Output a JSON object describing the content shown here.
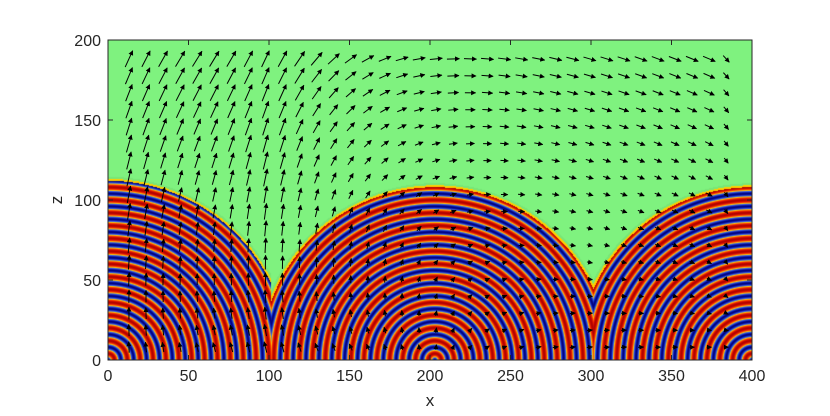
{
  "chart_data": {
    "type": "heatmap",
    "title": "",
    "xlabel": "x",
    "ylabel": "z",
    "xlim": [
      0,
      400
    ],
    "ylim": [
      0,
      200
    ],
    "xticks": [
      0,
      50,
      100,
      150,
      200,
      250,
      300,
      350,
      400
    ],
    "yticks": [
      0,
      50,
      100,
      150,
      200
    ],
    "grid": false,
    "background_color": "#7ff27f",
    "band_colors": [
      "#b00000",
      "#ff2a00",
      "#ffd000",
      "#2b5cff",
      "#00007f"
    ],
    "wave_sources": [
      {
        "x": 0,
        "z": 0,
        "front_radius": 112
      },
      {
        "x": 203,
        "z": 0,
        "front_radius": 108
      },
      {
        "x": 400,
        "z": 0,
        "front_radius": 108
      }
    ],
    "wavelength": 8,
    "front_cusps": [
      {
        "x": 100,
        "z": 26
      },
      {
        "x": 302,
        "z": 40
      }
    ],
    "vector_field": {
      "description": "velocity arrows overlaid on the field",
      "upward_columns_x": [
        10,
        100
      ],
      "top_flow_direction": "rightward",
      "arrow_color": "#000000"
    }
  }
}
